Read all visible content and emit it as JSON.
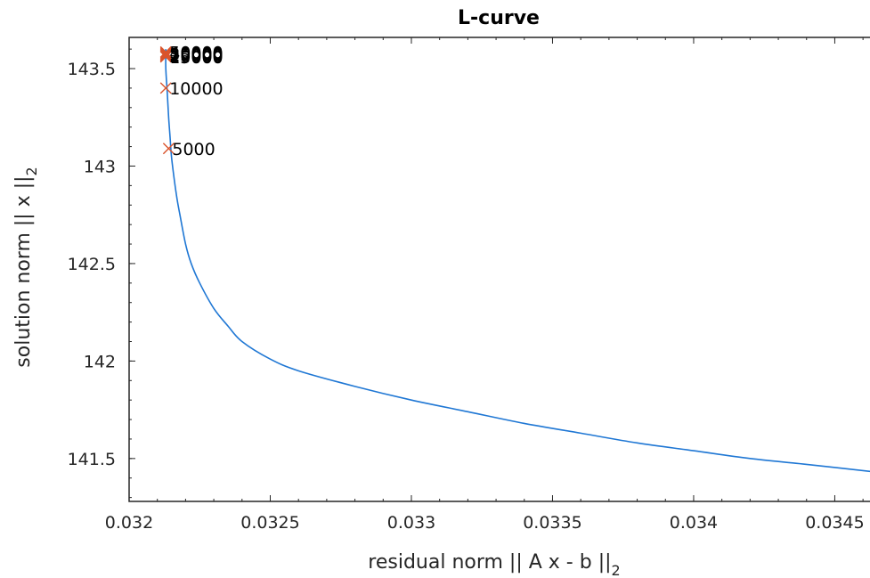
{
  "chart_data": {
    "type": "line",
    "title": "L-curve",
    "xlabel": "residual norm || A x - b ||",
    "xlabel_sub": "2",
    "ylabel": "solution norm || x ||",
    "ylabel_sub": "2",
    "xlim": [
      0.032,
      0.03465
    ],
    "ylim": [
      141.28,
      143.66
    ],
    "x_ticks": [
      0.032,
      0.0325,
      0.033,
      0.0335,
      0.034,
      0.0345
    ],
    "x_tick_labels": [
      "0.032",
      "0.0325",
      "0.033",
      "0.0335",
      "0.034",
      "0.0345"
    ],
    "y_ticks": [
      141.5,
      142,
      142.5,
      143,
      143.5
    ],
    "y_tick_labels": [
      "141.5",
      "142",
      "142.5",
      "143",
      "143.5"
    ],
    "grid": false,
    "series": [
      {
        "color": "#1f77d4",
        "x": [
          0.03213,
          0.03213,
          0.032135,
          0.03214,
          0.032145,
          0.03215,
          0.03216,
          0.03217,
          0.03218,
          0.0322,
          0.03222,
          0.03225,
          0.0323,
          0.03235,
          0.0324,
          0.0325,
          0.0326,
          0.0328,
          0.033,
          0.0332,
          0.0334,
          0.0336,
          0.0338,
          0.034,
          0.0342,
          0.0344,
          0.03465
        ],
        "y": [
          143.6,
          143.5,
          143.38,
          143.25,
          143.15,
          143.05,
          142.93,
          142.83,
          142.75,
          142.6,
          142.5,
          142.4,
          142.27,
          142.18,
          142.1,
          142.01,
          141.95,
          141.87,
          141.8,
          141.74,
          141.68,
          141.63,
          141.58,
          141.54,
          141.5,
          141.47,
          141.43
        ]
      }
    ],
    "markers": {
      "color": "#d9542c",
      "points": [
        {
          "x": 0.03213,
          "y": 143.56,
          "label": "15000"
        },
        {
          "x": 0.03213,
          "y": 143.565,
          "label": "20000"
        },
        {
          "x": 0.03213,
          "y": 143.57,
          "label": "25000"
        },
        {
          "x": 0.03213,
          "y": 143.575,
          "label": "30000"
        },
        {
          "x": 0.03213,
          "y": 143.58,
          "label": "40000"
        },
        {
          "x": 0.03213,
          "y": 143.585,
          "label": "50000"
        },
        {
          "x": 0.03213,
          "y": 143.4,
          "label": "10000"
        },
        {
          "x": 0.03214,
          "y": 143.09,
          "label": "5000"
        }
      ]
    }
  }
}
